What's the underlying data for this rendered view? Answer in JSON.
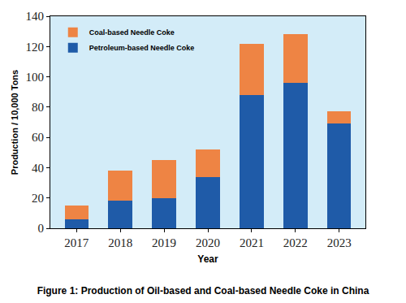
{
  "chart_data": {
    "type": "bar",
    "title": "Figure 1: Production of Oil-based and Coal-based Needle Coke in China",
    "x_label": "Year",
    "y_label": "Production / 10,000 Tons",
    "categories": [
      "2017",
      "2018",
      "2019",
      "2020",
      "2021",
      "2022",
      "2023"
    ],
    "series": [
      {
        "name": "Petroleum-based Needle Coke",
        "color": "#1f5ba8",
        "values": [
          6,
          18,
          20,
          34,
          88,
          96,
          69
        ]
      },
      {
        "name": "Coal-based Needle Coke",
        "color": "#ee8444",
        "values": [
          9,
          20,
          25,
          18,
          34,
          32,
          8
        ]
      }
    ],
    "stacked": true,
    "ylim": [
      0,
      140
    ],
    "yticks": [
      0,
      20,
      40,
      60,
      80,
      100,
      120,
      140
    ],
    "grid": false,
    "legend": "upper left"
  }
}
